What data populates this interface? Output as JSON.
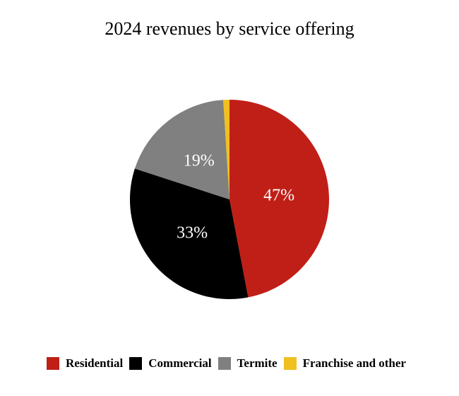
{
  "chart_data": {
    "type": "pie",
    "title": "2024 revenues by service offering",
    "categories": [
      "Residential",
      "Commercial",
      "Termite",
      "Franchise and other"
    ],
    "values": [
      47,
      33,
      19,
      1
    ],
    "labels": [
      "47%",
      "33%",
      "19%",
      ""
    ],
    "colors": [
      "#c01f17",
      "#000000",
      "#808080",
      "#f0c020"
    ],
    "label_color": "#ffffff",
    "legend_position": "bottom"
  }
}
